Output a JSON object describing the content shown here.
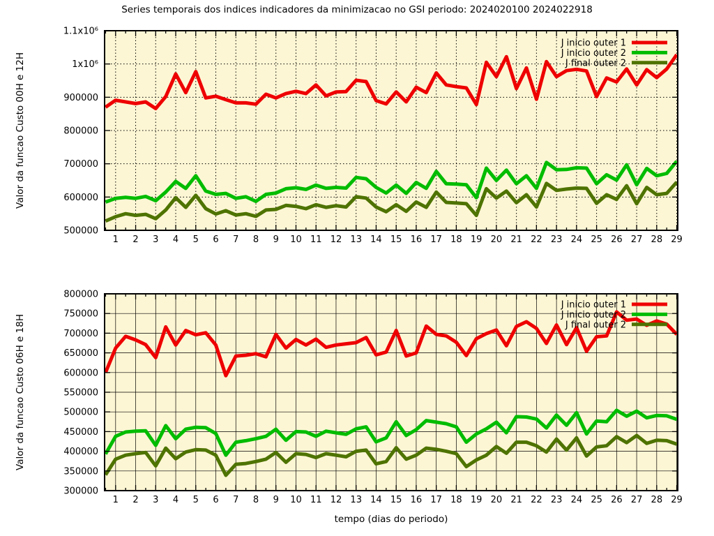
{
  "title": "Series temporais dos indices indicadores da minimizacao no GSI periodo: 2024020100 2024022918",
  "colors": {
    "background": "#fdf6d4",
    "axis": "#000000",
    "series_red": "#ee0000",
    "series_green": "#00bc00",
    "series_dark_green": "#4e7300"
  },
  "chart_data": [
    {
      "type": "line",
      "panel": "top",
      "ylabel": "Valor da funcao Custo 00H e 12H",
      "xlabel": "",
      "ylim": [
        500000,
        1100000
      ],
      "xlim": [
        0.45,
        29.05
      ],
      "x_start": 0.5,
      "x_step": 0.5,
      "x_minor_step": 0.5,
      "grid_style": "dotted",
      "legend_position": "top-right",
      "xticks": [
        1,
        2,
        3,
        4,
        5,
        6,
        7,
        8,
        9,
        10,
        11,
        12,
        13,
        14,
        15,
        16,
        17,
        18,
        19,
        20,
        21,
        22,
        23,
        24,
        25,
        26,
        27,
        28,
        29
      ],
      "yticks": [
        {
          "v": 500000,
          "t": "500000"
        },
        {
          "v": 600000,
          "t": "600000"
        },
        {
          "v": 700000,
          "t": "700000"
        },
        {
          "v": 800000,
          "t": "800000"
        },
        {
          "v": 900000,
          "t": "900000"
        },
        {
          "v": 1000000,
          "t": "1x10⁶"
        },
        {
          "v": 1100000,
          "t": "1.1x10⁶"
        }
      ],
      "series": [
        {
          "name": "J inicio outer 1",
          "color": "#ee0000",
          "values": [
            870000,
            891000,
            886000,
            881000,
            886000,
            866000,
            902000,
            970000,
            914000,
            977000,
            898000,
            903000,
            893000,
            883000,
            883000,
            879000,
            909000,
            898000,
            911000,
            918000,
            911000,
            937000,
            904000,
            916000,
            917000,
            951000,
            947000,
            890000,
            880000,
            916000,
            886000,
            930000,
            914000,
            973000,
            937000,
            932000,
            928000,
            878000,
            1005000,
            962000,
            1022000,
            926000,
            988000,
            894000,
            1007000,
            962000,
            980000,
            984000,
            979000,
            902000,
            958000,
            946000,
            985000,
            937000,
            983000,
            959000,
            985000,
            1028000
          ]
        },
        {
          "name": "J inicio outer 2",
          "color": "#00bc00",
          "values": [
            585000,
            596000,
            599000,
            596000,
            602000,
            589000,
            615000,
            647000,
            626000,
            664000,
            618000,
            608000,
            611000,
            596000,
            601000,
            587000,
            608000,
            612000,
            625000,
            628000,
            623000,
            636000,
            626000,
            629000,
            627000,
            659000,
            655000,
            629000,
            612000,
            636000,
            611000,
            644000,
            626000,
            677000,
            640000,
            639000,
            637000,
            598000,
            687000,
            650000,
            681000,
            640000,
            664000,
            626000,
            704000,
            682000,
            683000,
            688000,
            687000,
            640000,
            667000,
            651000,
            697000,
            637000,
            686000,
            664000,
            671000,
            708000
          ]
        },
        {
          "name": "J final outer 2",
          "color": "#4e7300",
          "values": [
            528000,
            541000,
            550000,
            545000,
            548000,
            535000,
            561000,
            598000,
            569000,
            605000,
            565000,
            549000,
            559000,
            546000,
            550000,
            542000,
            561000,
            563000,
            575000,
            572000,
            565000,
            577000,
            569000,
            574000,
            570000,
            601000,
            597000,
            570000,
            556000,
            577000,
            557000,
            585000,
            569000,
            615000,
            584000,
            582000,
            580000,
            545000,
            625000,
            597000,
            618000,
            583000,
            607000,
            570000,
            641000,
            620000,
            624000,
            627000,
            626000,
            581000,
            607000,
            593000,
            634000,
            580000,
            629000,
            607000,
            611000,
            645000
          ]
        }
      ]
    },
    {
      "type": "line",
      "panel": "bottom",
      "ylabel": "Valor da funcao Custo 06H e 18H",
      "xlabel": "tempo (dias do periodo)",
      "ylim": [
        300000,
        800000
      ],
      "xlim": [
        0.45,
        29.05
      ],
      "x_start": 0.5,
      "x_step": 0.5,
      "x_minor_step": 0.5,
      "grid_style": "solid",
      "legend_position": "top-right",
      "xticks": [
        1,
        2,
        3,
        4,
        5,
        6,
        7,
        8,
        9,
        10,
        11,
        12,
        13,
        14,
        15,
        16,
        17,
        18,
        19,
        20,
        21,
        22,
        23,
        24,
        25,
        26,
        27,
        28,
        29
      ],
      "yticks": [
        {
          "v": 300000,
          "t": "300000"
        },
        {
          "v": 350000,
          "t": "350000"
        },
        {
          "v": 400000,
          "t": "400000"
        },
        {
          "v": 450000,
          "t": "450000"
        },
        {
          "v": 500000,
          "t": "500000"
        },
        {
          "v": 550000,
          "t": "550000"
        },
        {
          "v": 600000,
          "t": "600000"
        },
        {
          "v": 650000,
          "t": "650000"
        },
        {
          "v": 700000,
          "t": "700000"
        },
        {
          "v": 750000,
          "t": "750000"
        },
        {
          "v": 800000,
          "t": "800000"
        }
      ],
      "series": [
        {
          "name": "J inicio outer 1",
          "color": "#ee0000",
          "values": [
            600000,
            662000,
            692000,
            683000,
            671000,
            638000,
            716000,
            670000,
            707000,
            696000,
            701000,
            670000,
            592000,
            642000,
            644000,
            648000,
            640000,
            697000,
            662000,
            684000,
            670000,
            685000,
            664000,
            670000,
            673000,
            676000,
            689000,
            645000,
            652000,
            707000,
            642000,
            650000,
            718000,
            697000,
            693000,
            677000,
            643000,
            686000,
            699000,
            708000,
            668000,
            717000,
            729000,
            712000,
            674000,
            721000,
            671000,
            714000,
            654000,
            691000,
            693000,
            754000,
            733000,
            736000,
            720000,
            731000,
            723000,
            697000
          ]
        },
        {
          "name": "J inicio outer 2",
          "color": "#00bc00",
          "values": [
            393000,
            438000,
            449000,
            451000,
            452000,
            415000,
            465000,
            432000,
            456000,
            461000,
            460000,
            445000,
            390000,
            423000,
            427000,
            432000,
            438000,
            456000,
            428000,
            450000,
            449000,
            438000,
            451000,
            447000,
            443000,
            457000,
            462000,
            424000,
            434000,
            475000,
            440000,
            455000,
            478000,
            474000,
            470000,
            462000,
            423000,
            444000,
            457000,
            474000,
            447000,
            488000,
            487000,
            482000,
            459000,
            492000,
            466000,
            498000,
            444000,
            477000,
            475000,
            504000,
            489000,
            502000,
            485000,
            491000,
            490000,
            481000
          ]
        },
        {
          "name": "J final outer 2",
          "color": "#4e7300",
          "values": [
            340000,
            380000,
            390000,
            394000,
            397000,
            363000,
            408000,
            381000,
            398000,
            404000,
            403000,
            390000,
            339000,
            367000,
            369000,
            374000,
            380000,
            397000,
            372000,
            394000,
            392000,
            384000,
            394000,
            390000,
            386000,
            400000,
            403000,
            368000,
            374000,
            409000,
            380000,
            390000,
            408000,
            405000,
            400000,
            394000,
            361000,
            378000,
            390000,
            412000,
            395000,
            423000,
            423000,
            414000,
            398000,
            431000,
            403000,
            434000,
            388000,
            411000,
            414000,
            437000,
            422000,
            440000,
            420000,
            428000,
            427000,
            418000
          ]
        }
      ]
    }
  ]
}
